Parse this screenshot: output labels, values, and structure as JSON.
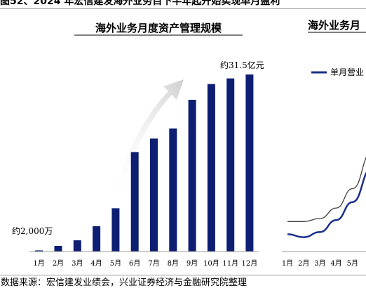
{
  "figure": {
    "title": "图52、2024 年宏信建发海外业务目下半年起开始实现单月盈利",
    "source": "数据来源：宏信建发业绩会，兴业证券经济与金融研究院整理"
  },
  "colors": {
    "bar": "#0d1e73",
    "line": "#1a2f8a",
    "line_secondary": "#3f3f3f",
    "arrow": "#d9d9d9",
    "axis": "#9a9a9a"
  },
  "icons": {
    "trend_arrow": "growth-arrow-icon"
  },
  "chart_data": [
    {
      "type": "bar",
      "title": "海外业务月度资产管理规模",
      "categories": [
        "1月",
        "2月",
        "3月",
        "4月",
        "5月",
        "6月",
        "7月",
        "8月",
        "9月",
        "10月",
        "11月",
        "12月"
      ],
      "values": [
        0.2,
        1.0,
        2.0,
        4.5,
        7.7,
        17.7,
        20.1,
        21.9,
        27.0,
        29.8,
        30.8,
        31.5
      ],
      "unit": "亿元",
      "ylim": [
        0,
        36
      ],
      "annotations": {
        "first": "约2,000万",
        "last": "约31.5亿元"
      },
      "grid": false
    },
    {
      "type": "line",
      "title": "海外业务月",
      "categories": [
        "1月",
        "2月",
        "3月",
        "4月",
        "5月"
      ],
      "series": [
        {
          "name": "单月营业",
          "values": [
            0.25,
            0.05,
            0.4,
            1.2,
            2.4
          ]
        },
        {
          "name": "",
          "values": [
            1.1,
            1.1,
            1.3,
            2.0,
            3.3
          ]
        }
      ],
      "ylim": [
        -1,
        13
      ],
      "legend": "top-left",
      "grid": false
    }
  ]
}
